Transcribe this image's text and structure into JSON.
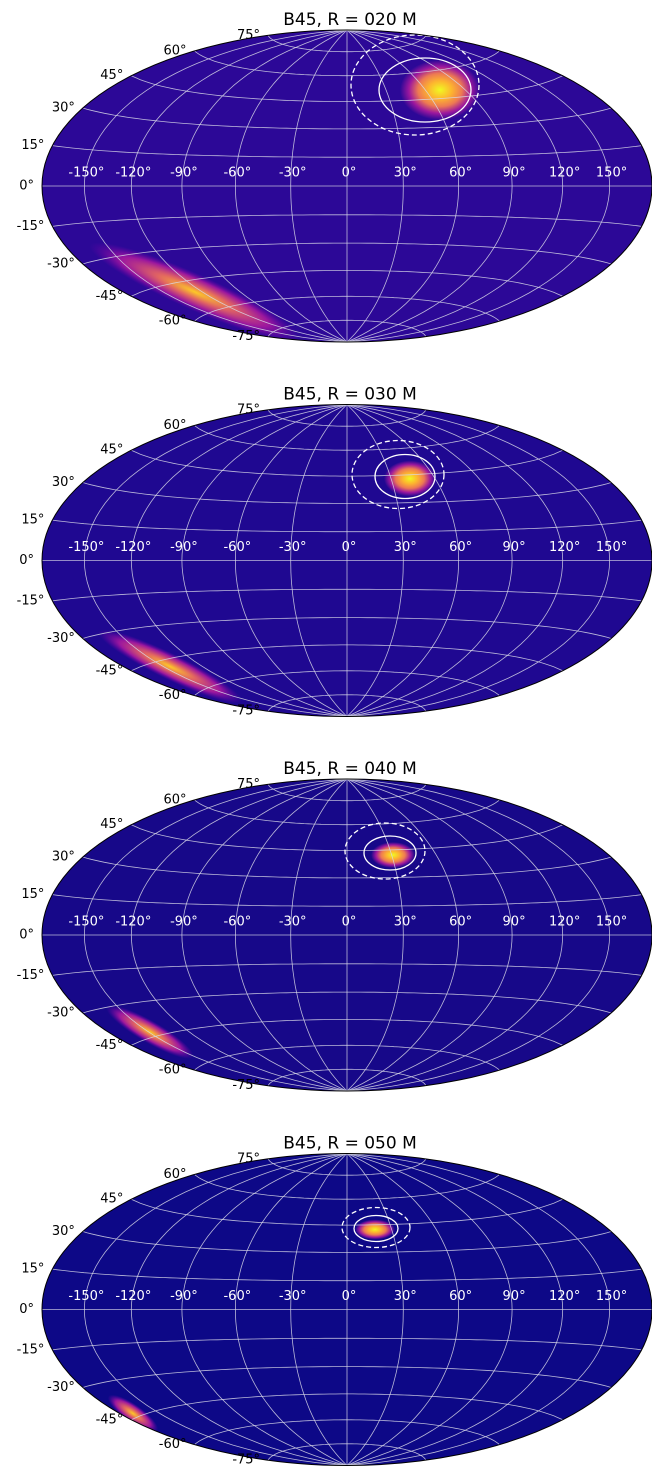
{
  "chart_data": [
    {
      "type": "hammer",
      "title": "B45, R = 020 M",
      "grid": true,
      "xticks": [
        {
          "value": -150,
          "label": "-150°"
        },
        {
          "value": -120,
          "label": "-120°"
        },
        {
          "value": -90,
          "label": "-90°"
        },
        {
          "value": -60,
          "label": "-60°"
        },
        {
          "value": -30,
          "label": "-30°"
        },
        {
          "value": 0,
          "label": "0°"
        },
        {
          "value": 30,
          "label": "30°"
        },
        {
          "value": 60,
          "label": "60°"
        },
        {
          "value": 90,
          "label": "90°"
        },
        {
          "value": 120,
          "label": "120°"
        },
        {
          "value": 150,
          "label": "150°"
        }
      ],
      "yticks": [
        {
          "value": -75,
          "label": "-75°"
        },
        {
          "value": -60,
          "label": "-60°"
        },
        {
          "value": -45,
          "label": "-45°"
        },
        {
          "value": -30,
          "label": "-30°"
        },
        {
          "value": -15,
          "label": "-15°"
        },
        {
          "value": 0,
          "label": "0°"
        },
        {
          "value": 15,
          "label": "15°"
        },
        {
          "value": 30,
          "label": "30°"
        },
        {
          "value": 45,
          "label": "45°"
        },
        {
          "value": 60,
          "label": "60°"
        },
        {
          "value": 75,
          "label": "75°"
        }
      ]
    },
    {
      "type": "hammer",
      "title": "B45, R = 030 M",
      "grid": true,
      "xticks": [
        {
          "value": -150,
          "label": "-150°"
        },
        {
          "value": -120,
          "label": "-120°"
        },
        {
          "value": -90,
          "label": "-90°"
        },
        {
          "value": -60,
          "label": "-60°"
        },
        {
          "value": -30,
          "label": "-30°"
        },
        {
          "value": 0,
          "label": "0°"
        },
        {
          "value": 30,
          "label": "30°"
        },
        {
          "value": 60,
          "label": "60°"
        },
        {
          "value": 90,
          "label": "90°"
        },
        {
          "value": 120,
          "label": "120°"
        },
        {
          "value": 150,
          "label": "150°"
        }
      ],
      "yticks": [
        {
          "value": -75,
          "label": "-75°"
        },
        {
          "value": -60,
          "label": "-60°"
        },
        {
          "value": -45,
          "label": "-45°"
        },
        {
          "value": -30,
          "label": "-30°"
        },
        {
          "value": -15,
          "label": "-15°"
        },
        {
          "value": 0,
          "label": "0°"
        },
        {
          "value": 15,
          "label": "15°"
        },
        {
          "value": 30,
          "label": "30°"
        },
        {
          "value": 45,
          "label": "45°"
        },
        {
          "value": 60,
          "label": "60°"
        },
        {
          "value": 75,
          "label": "75°"
        }
      ]
    },
    {
      "type": "hammer",
      "title": "B45, R = 040 M",
      "grid": true,
      "xticks": [
        {
          "value": -150,
          "label": "-150°"
        },
        {
          "value": -120,
          "label": "-120°"
        },
        {
          "value": -90,
          "label": "-90°"
        },
        {
          "value": -60,
          "label": "-60°"
        },
        {
          "value": -30,
          "label": "-30°"
        },
        {
          "value": 0,
          "label": "0°"
        },
        {
          "value": 30,
          "label": "30°"
        },
        {
          "value": 60,
          "label": "60°"
        },
        {
          "value": 90,
          "label": "90°"
        },
        {
          "value": 120,
          "label": "120°"
        },
        {
          "value": 150,
          "label": "150°"
        }
      ],
      "yticks": [
        {
          "value": -75,
          "label": "-75°"
        },
        {
          "value": -60,
          "label": "-60°"
        },
        {
          "value": -45,
          "label": "-45°"
        },
        {
          "value": -30,
          "label": "-30°"
        },
        {
          "value": -15,
          "label": "-15°"
        },
        {
          "value": 0,
          "label": "0°"
        },
        {
          "value": 15,
          "label": "15°"
        },
        {
          "value": 30,
          "label": "30°"
        },
        {
          "value": 45,
          "label": "45°"
        },
        {
          "value": 60,
          "label": "60°"
        },
        {
          "value": 75,
          "label": "75°"
        }
      ]
    },
    {
      "type": "hammer",
      "title": "B45, R = 050 M",
      "grid": true,
      "xticks": [
        {
          "value": -150,
          "label": "-150°"
        },
        {
          "value": -120,
          "label": "-120°"
        },
        {
          "value": -90,
          "label": "-90°"
        },
        {
          "value": -60,
          "label": "-60°"
        },
        {
          "value": -30,
          "label": "-30°"
        },
        {
          "value": 0,
          "label": "0°"
        },
        {
          "value": 30,
          "label": "30°"
        },
        {
          "value": 60,
          "label": "60°"
        },
        {
          "value": 90,
          "label": "90°"
        },
        {
          "value": 120,
          "label": "120°"
        },
        {
          "value": 150,
          "label": "150°"
        }
      ],
      "yticks": [
        {
          "value": -75,
          "label": "-75°"
        },
        {
          "value": -60,
          "label": "-60°"
        },
        {
          "value": -45,
          "label": "-45°"
        },
        {
          "value": -30,
          "label": "-30°"
        },
        {
          "value": -15,
          "label": "-15°"
        },
        {
          "value": 0,
          "label": "0°"
        },
        {
          "value": 15,
          "label": "15°"
        },
        {
          "value": 30,
          "label": "30°"
        },
        {
          "value": 45,
          "label": "45°"
        },
        {
          "value": 60,
          "label": "60°"
        },
        {
          "value": 75,
          "label": "75°"
        }
      ]
    }
  ]
}
